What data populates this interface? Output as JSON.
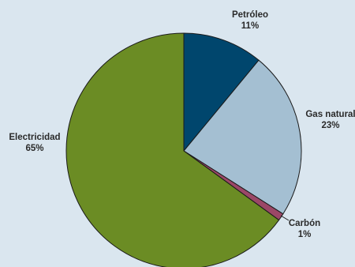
{
  "chart_data": {
    "type": "pie",
    "title": "",
    "slices": [
      {
        "name": "Petróleo",
        "label": "Petróleo",
        "pct_label": "11%",
        "value": 11,
        "color": "#00466d"
      },
      {
        "name": "Gas natural",
        "label": "Gas natural",
        "pct_label": "23%",
        "value": 23,
        "color": "#a4bfd2"
      },
      {
        "name": "Carbón",
        "label": "Carbón",
        "pct_label": "1%",
        "value": 1,
        "color": "#9b4767"
      },
      {
        "name": "Electricidad",
        "label": "Electricidad",
        "pct_label": "65%",
        "value": 65,
        "color": "#6b8c24"
      }
    ],
    "start_angle_deg": 0,
    "direction": "clockwise",
    "legend": "none",
    "border_color": "#1a1a1a"
  }
}
